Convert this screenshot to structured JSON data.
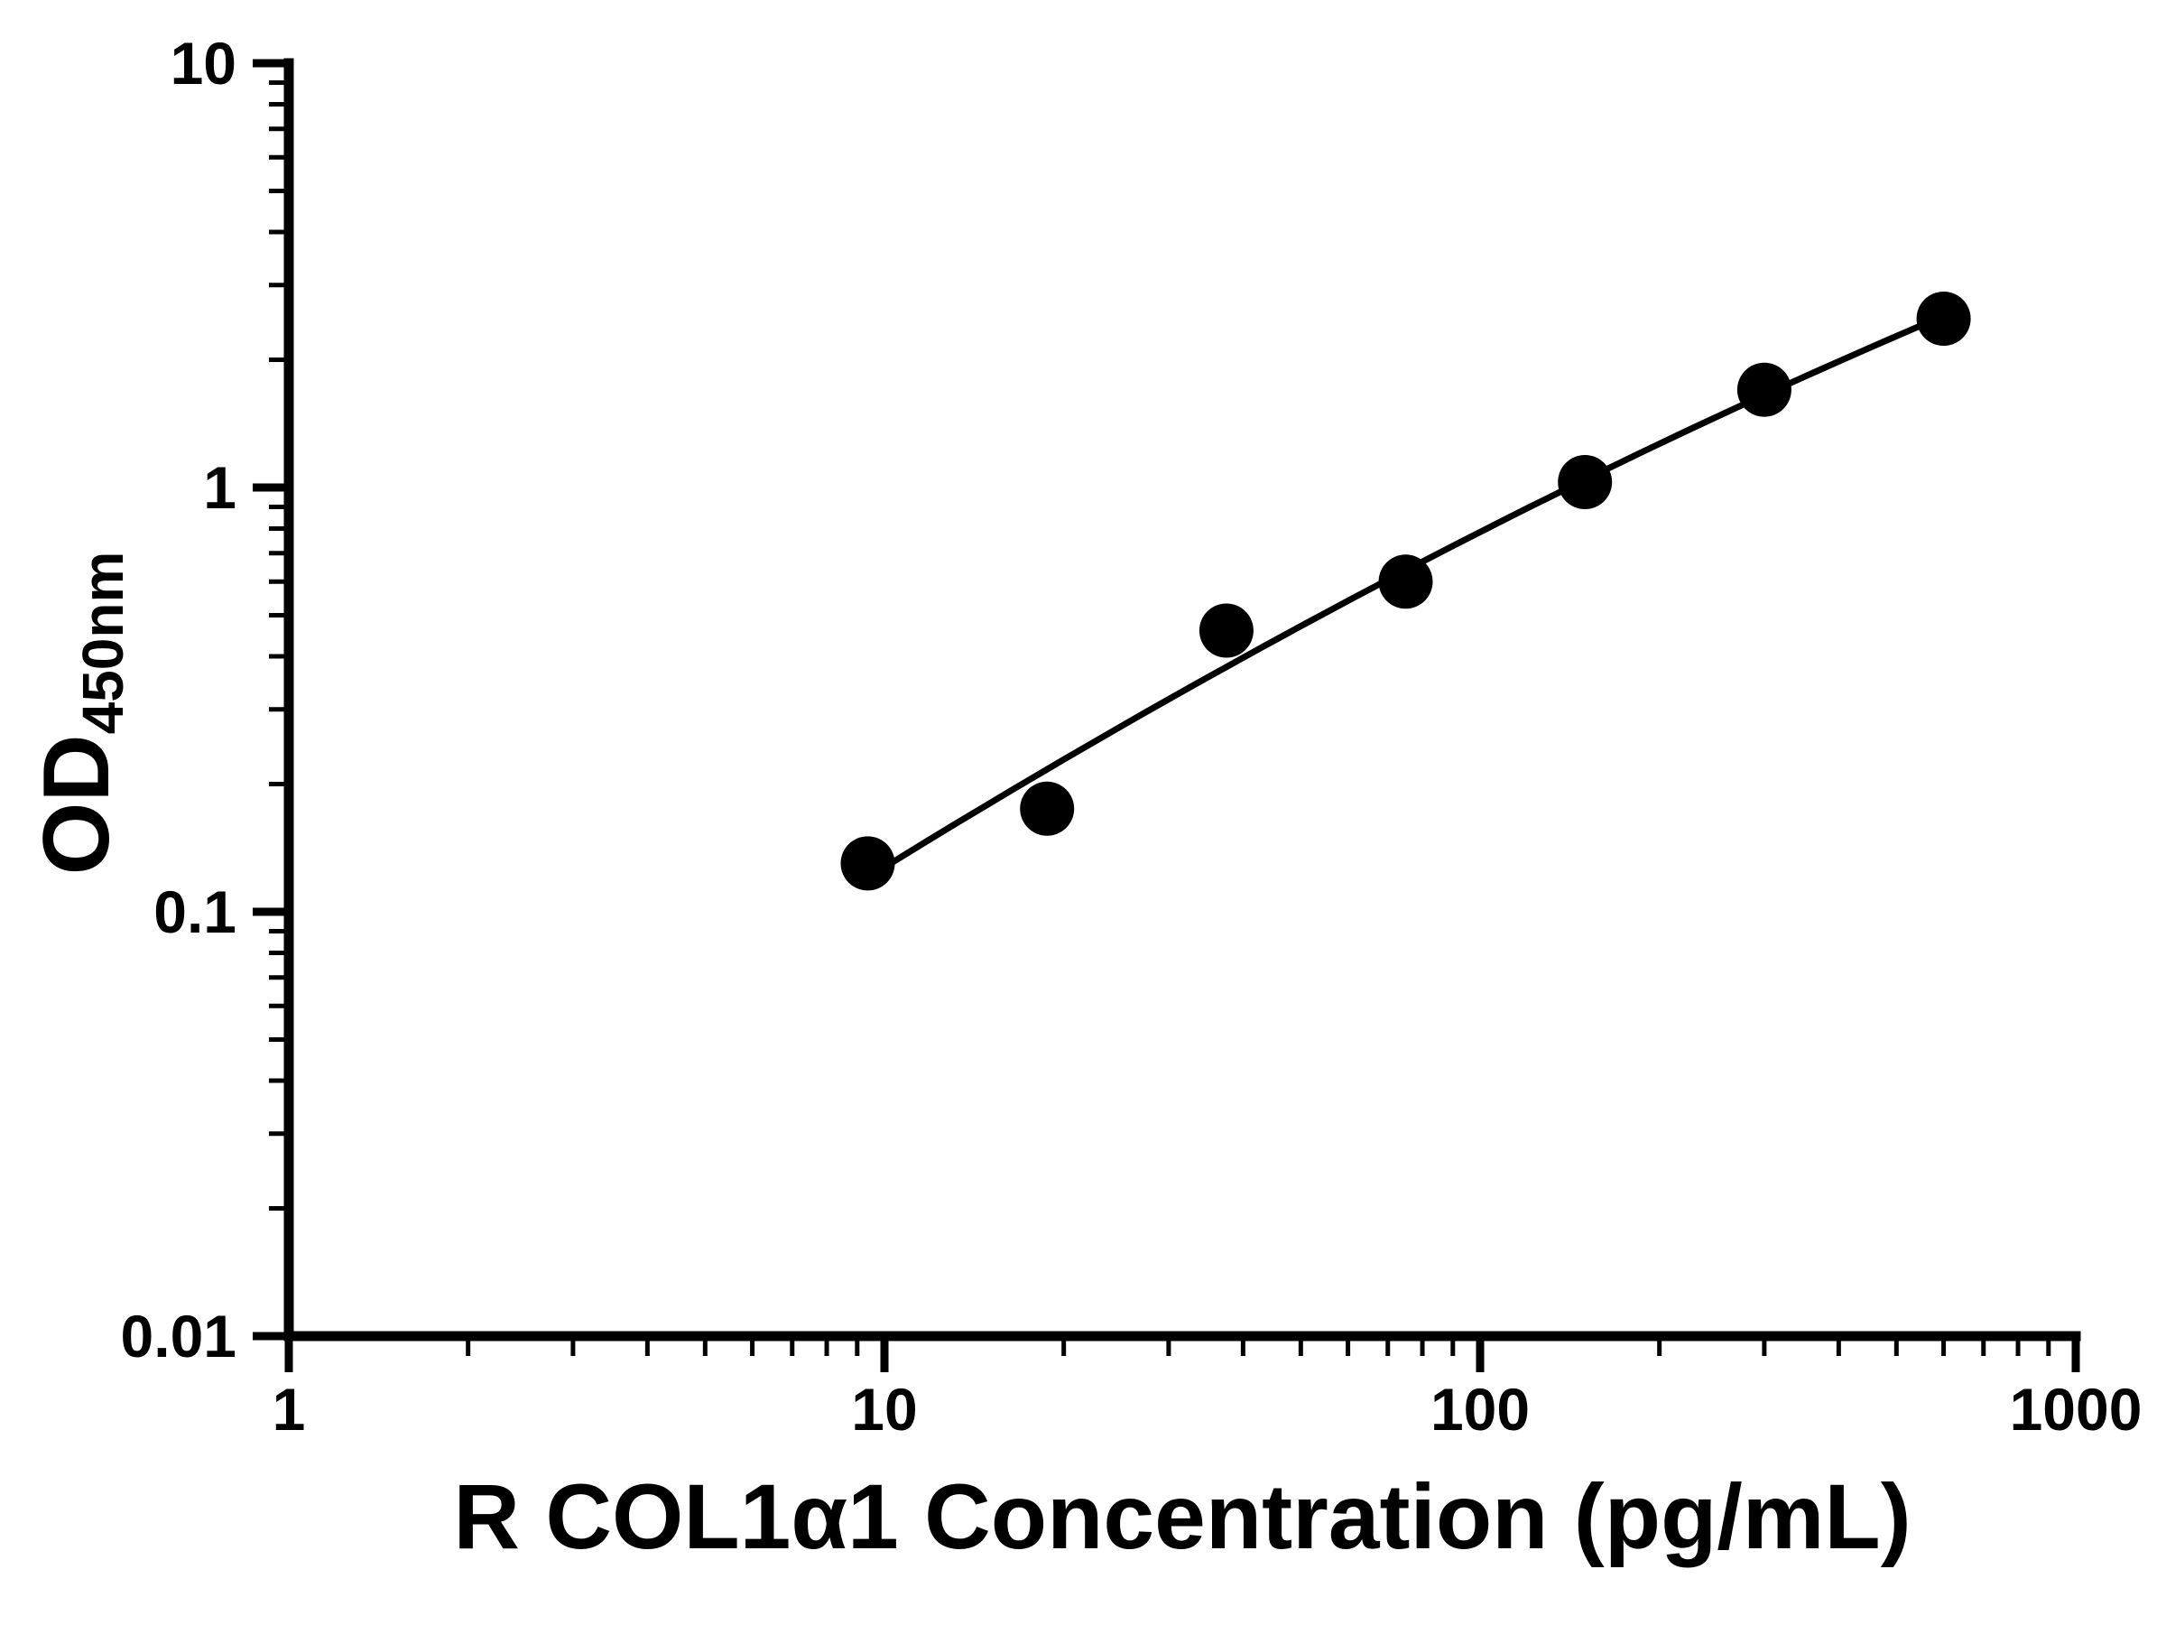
{
  "chart_data": {
    "type": "scatter",
    "title": "",
    "xlabel": "R COL1α1 Concentration (pg/mL)",
    "ylabel": {
      "base": "OD",
      "subscript": "450nm"
    },
    "x_scale": "log",
    "y_scale": "log",
    "xlim": [
      1,
      1000
    ],
    "ylim": [
      0.01,
      10
    ],
    "x_ticks": {
      "values": [
        1,
        10,
        100,
        1000
      ],
      "labels": [
        "1",
        "10",
        "100",
        "1000"
      ]
    },
    "y_ticks": {
      "values": [
        0.01,
        0.1,
        1,
        10
      ],
      "labels": [
        "0.01",
        "0.1",
        "1",
        "10"
      ]
    },
    "minor_log_ticks": true,
    "grid": false,
    "legend": "none",
    "series": [
      {
        "marker": "circle",
        "color": "#000000",
        "x": [
          9.375,
          18.75,
          37.5,
          75,
          150,
          300,
          600
        ],
        "y": [
          0.13,
          0.175,
          0.46,
          0.6,
          1.03,
          1.7,
          2.5
        ],
        "fit": "smooth curve through standards (log-log quadratic)"
      }
    ]
  },
  "colors": {
    "foreground": "#000000",
    "background": "#ffffff"
  }
}
